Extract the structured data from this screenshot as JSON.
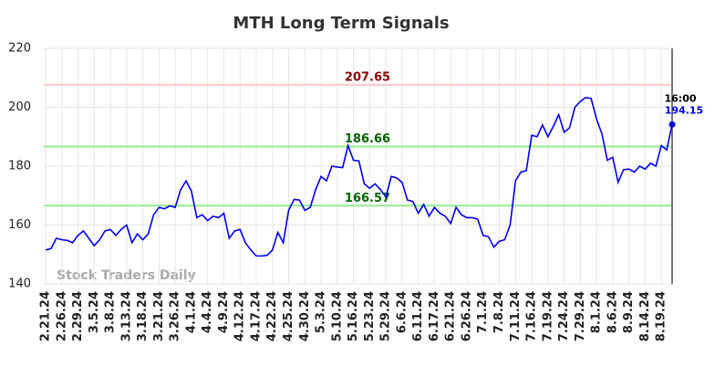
{
  "chart_data": {
    "type": "line",
    "title": "MTH Long Term Signals",
    "categories": [
      "2.21.24",
      null,
      null,
      "2.26.24",
      null,
      null,
      "2.29.24",
      null,
      null,
      "3.5.24",
      null,
      null,
      "3.8.24",
      null,
      null,
      "3.13.24",
      null,
      null,
      "3.18.24",
      null,
      null,
      "3.21.24",
      null,
      null,
      "3.26.24",
      null,
      null,
      "4.1.24",
      null,
      null,
      "4.4.24",
      null,
      null,
      "4.9.24",
      null,
      null,
      "4.12.24",
      null,
      null,
      "4.17.24",
      null,
      null,
      "4.22.24",
      null,
      null,
      "4.25.24",
      null,
      null,
      "4.30.24",
      null,
      null,
      "5.3.24",
      null,
      null,
      "5.10.24",
      null,
      null,
      "5.16.24",
      null,
      null,
      "5.23.24",
      null,
      null,
      "5.29.24",
      null,
      null,
      "6.6.24",
      null,
      null,
      "6.11.24",
      null,
      null,
      "6.17.24",
      null,
      null,
      "6.21.24",
      null,
      null,
      "6.26.24",
      null,
      null,
      "7.1.24",
      null,
      null,
      "7.8.24",
      null,
      null,
      "7.11.24",
      null,
      null,
      "7.16.24",
      null,
      null,
      "7.19.24",
      null,
      null,
      "7.24.24",
      null,
      null,
      "7.29.24",
      null,
      null,
      "8.1.24",
      null,
      null,
      "8.6.24",
      null,
      null,
      "8.9.24",
      null,
      null,
      "8.14.24",
      null,
      null,
      "8.19.24",
      null,
      null
    ],
    "values": [
      151.5,
      152,
      155.5,
      155,
      154.8,
      154,
      156.5,
      158,
      155.5,
      153,
      155,
      158,
      158.5,
      156.5,
      158.5,
      160,
      154,
      157,
      155,
      157,
      163.5,
      166,
      165.5,
      166.5,
      166,
      172,
      175,
      171.5,
      162.5,
      163.5,
      161.5,
      163,
      162.5,
      164,
      155.5,
      158,
      158.5,
      154,
      151.5,
      149.5,
      149.5,
      149.7,
      151.5,
      157.5,
      154,
      165,
      168.7,
      168.5,
      165,
      166,
      172,
      176.5,
      175,
      180,
      179.7,
      179.5,
      187,
      182,
      181.8,
      174,
      172.5,
      174,
      172,
      169.5,
      176.5,
      176,
      174.5,
      168.5,
      168,
      164,
      167,
      163,
      166,
      164,
      163,
      160.5,
      166,
      163.5,
      162.5,
      162.5,
      162,
      156.5,
      156,
      152.5,
      154.5,
      155,
      160,
      175,
      178,
      178.5,
      190.5,
      190,
      194,
      190,
      193.5,
      197.5,
      191.5,
      193,
      200,
      202,
      203.3,
      203,
      196,
      191,
      182,
      183,
      174.5,
      178.8,
      179,
      178,
      180,
      179,
      181,
      180,
      187,
      185.5,
      194.15
    ],
    "color": "#0000ee",
    "ylim": [
      140,
      220
    ],
    "yticks": [
      140,
      160,
      180,
      200,
      220
    ],
    "grid": true,
    "hlines": [
      {
        "value": 207.65,
        "color": "#ffc8c8",
        "label_color": "#8b0000"
      },
      {
        "value": 186.66,
        "color": "#90ee90",
        "label_color": "#006400"
      },
      {
        "value": 166.57,
        "color": "#90ee90",
        "label_color": "#006400"
      }
    ],
    "last_time": "16:00",
    "watermark": "Stock Traders Daily"
  }
}
